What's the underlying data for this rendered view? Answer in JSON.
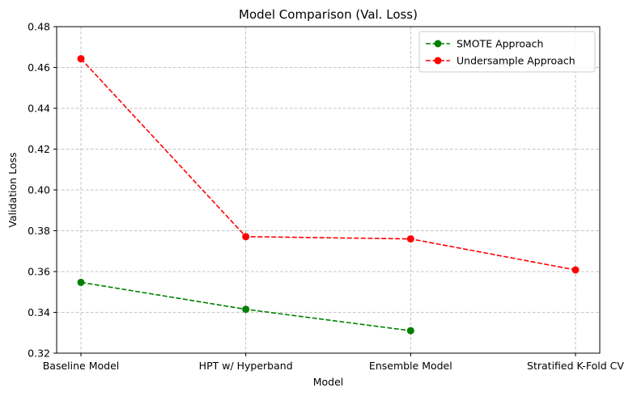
{
  "chart_data": {
    "type": "line",
    "title": "Model Comparison (Val. Loss)",
    "xlabel": "Model",
    "ylabel": "Validation Loss",
    "categories": [
      "Baseline Model",
      "HPT w/ Hyperband",
      "Ensemble Model",
      "Stratified K-Fold CV"
    ],
    "ylim": [
      0.32,
      0.48
    ],
    "yticks": [
      "0.32",
      "0.34",
      "0.36",
      "0.38",
      "0.40",
      "0.42",
      "0.44",
      "0.46",
      "0.48"
    ],
    "grid": true,
    "legend_position": "top-right",
    "series": [
      {
        "name": "SMOTE Approach",
        "color": "#008000",
        "linestyle": "dashed",
        "marker": "circle",
        "values": [
          0.3547,
          0.3415,
          0.331,
          null
        ]
      },
      {
        "name": "Undersample Approach",
        "color": "#ff0000",
        "linestyle": "dashed",
        "marker": "circle",
        "values": [
          0.4643,
          0.3771,
          0.376,
          0.3608
        ]
      }
    ]
  }
}
